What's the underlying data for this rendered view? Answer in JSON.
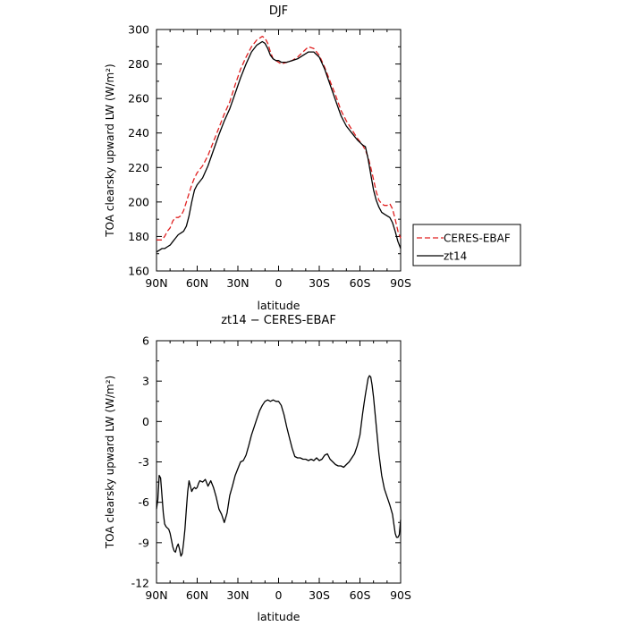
{
  "chart_data": [
    {
      "type": "line",
      "title": "DJF",
      "xlabel": "latitude",
      "ylabel": "TOA clearsky upward LW (W/m²)",
      "xlim": [
        90,
        -90
      ],
      "ylim": [
        160,
        300
      ],
      "yticks": [
        160,
        180,
        200,
        220,
        240,
        260,
        280,
        300
      ],
      "xticks": [
        90,
        60,
        30,
        0,
        -30,
        -60,
        -90
      ],
      "xtick_labels": [
        "90N",
        "60N",
        "30N",
        "0",
        "30S",
        "60S",
        "90S"
      ],
      "grid": false,
      "legend_position": "right",
      "series": [
        {
          "name": "CERES-EBAF",
          "color": "#e02020",
          "dash": "dashed",
          "x": [
            90,
            88,
            86,
            84,
            82,
            80,
            78,
            76,
            74,
            72,
            70,
            68,
            66,
            64,
            62,
            60,
            56,
            52,
            48,
            44,
            40,
            36,
            32,
            28,
            24,
            20,
            16,
            12,
            10,
            8,
            6,
            4,
            2,
            0,
            -2,
            -6,
            -10,
            -14,
            -18,
            -22,
            -26,
            -30,
            -34,
            -38,
            -42,
            -46,
            -50,
            -54,
            -58,
            -62,
            -64,
            -66,
            -68,
            -70,
            -72,
            -74,
            -76,
            -78,
            -80,
            -82,
            -84,
            -86,
            -88,
            -90
          ],
          "y": [
            178,
            178,
            178,
            180,
            183,
            185,
            189,
            191,
            191,
            192,
            195,
            200,
            205,
            210,
            214,
            217,
            221,
            227,
            235,
            243,
            251,
            258,
            268,
            277,
            284,
            290,
            294,
            296,
            295,
            292,
            287,
            283,
            282,
            281,
            280,
            281,
            282,
            284,
            287,
            290,
            289,
            285,
            278,
            270,
            262,
            253,
            247,
            242,
            237,
            233,
            230,
            226,
            220,
            213,
            206,
            201,
            199,
            198,
            198,
            199,
            196,
            190,
            183,
            179
          ]
        },
        {
          "name": "zt14",
          "color": "#000000",
          "dash": "solid",
          "x": [
            90,
            88,
            86,
            84,
            82,
            80,
            78,
            76,
            74,
            72,
            70,
            68,
            66,
            64,
            62,
            60,
            56,
            52,
            48,
            44,
            40,
            36,
            32,
            28,
            24,
            20,
            16,
            12,
            10,
            8,
            6,
            4,
            2,
            0,
            -2,
            -6,
            -10,
            -14,
            -18,
            -22,
            -26,
            -30,
            -34,
            -38,
            -42,
            -46,
            -50,
            -54,
            -58,
            -62,
            -64,
            -66,
            -68,
            -70,
            -72,
            -74,
            -76,
            -78,
            -80,
            -82,
            -84,
            -86,
            -88,
            -90
          ],
          "y": [
            171,
            172,
            173,
            173,
            174,
            175,
            177,
            179,
            181,
            182,
            183,
            186,
            192,
            200,
            207,
            210,
            214,
            221,
            230,
            239,
            247,
            254,
            263,
            272,
            280,
            287,
            291,
            293,
            292,
            289,
            285,
            283,
            282,
            282,
            281,
            281,
            282,
            283,
            285,
            287,
            287,
            284,
            277,
            268,
            259,
            250,
            244,
            240,
            236,
            233,
            232,
            225,
            216,
            207,
            201,
            197,
            194,
            193,
            192,
            191,
            188,
            183,
            177,
            173
          ]
        }
      ]
    },
    {
      "type": "line",
      "title": "zt14 − CERES-EBAF",
      "xlabel": "latitude",
      "ylabel": "TOA clearsky upward LW (W/m²)",
      "xlim": [
        90,
        -90
      ],
      "ylim": [
        -12,
        6
      ],
      "yticks": [
        -12,
        -9,
        -6,
        -3,
        0,
        3,
        6
      ],
      "xticks": [
        90,
        60,
        30,
        0,
        -30,
        -60,
        -90
      ],
      "xtick_labels": [
        "90N",
        "60N",
        "30N",
        "0",
        "30S",
        "60S",
        "90S"
      ],
      "grid": false,
      "series": [
        {
          "color": "#000000",
          "dash": "solid",
          "x": [
            90,
            89,
            88,
            87,
            86,
            85,
            84,
            83,
            82,
            81,
            80,
            79,
            78,
            77,
            76,
            75,
            74,
            73,
            72,
            71,
            70,
            69,
            68,
            67,
            66,
            65,
            64,
            63,
            62,
            61,
            60,
            59,
            58,
            56,
            54,
            52,
            50,
            48,
            46,
            44,
            42,
            40,
            38,
            36,
            34,
            32,
            30,
            28,
            26,
            24,
            22,
            20,
            18,
            16,
            14,
            12,
            10,
            8,
            6,
            4,
            2,
            0,
            -2,
            -4,
            -6,
            -8,
            -10,
            -12,
            -14,
            -16,
            -18,
            -20,
            -22,
            -24,
            -26,
            -28,
            -30,
            -32,
            -34,
            -36,
            -38,
            -40,
            -42,
            -44,
            -46,
            -48,
            -50,
            -52,
            -54,
            -56,
            -58,
            -60,
            -61,
            -62,
            -63,
            -64,
            -65,
            -66,
            -67,
            -68,
            -69,
            -70,
            -72,
            -74,
            -76,
            -78,
            -80,
            -82,
            -84,
            -85,
            -86,
            -87,
            -88,
            -89,
            -90
          ],
          "y": [
            -6.5,
            -5.8,
            -4.0,
            -4.2,
            -5.5,
            -6.8,
            -7.6,
            -7.8,
            -7.9,
            -8.0,
            -8.3,
            -8.8,
            -9.3,
            -9.6,
            -9.7,
            -9.3,
            -9.1,
            -9.5,
            -10.0,
            -9.8,
            -9.0,
            -8.0,
            -6.5,
            -5.2,
            -4.4,
            -4.8,
            -5.2,
            -5.0,
            -4.9,
            -5.0,
            -4.9,
            -4.6,
            -4.4,
            -4.5,
            -4.3,
            -4.8,
            -4.4,
            -4.9,
            -5.6,
            -6.5,
            -6.9,
            -7.5,
            -6.8,
            -5.5,
            -4.8,
            -4.0,
            -3.5,
            -3.0,
            -2.9,
            -2.5,
            -1.8,
            -1.0,
            -0.4,
            0.2,
            0.8,
            1.2,
            1.5,
            1.6,
            1.5,
            1.6,
            1.5,
            1.5,
            1.2,
            0.5,
            -0.4,
            -1.2,
            -2.0,
            -2.6,
            -2.7,
            -2.7,
            -2.8,
            -2.8,
            -2.9,
            -2.8,
            -2.9,
            -2.7,
            -2.9,
            -2.8,
            -2.5,
            -2.4,
            -2.8,
            -3.0,
            -3.2,
            -3.3,
            -3.3,
            -3.4,
            -3.2,
            -3.0,
            -2.7,
            -2.4,
            -1.8,
            -1.0,
            -0.2,
            0.6,
            1.3,
            2.0,
            2.6,
            3.2,
            3.4,
            3.3,
            2.7,
            1.8,
            -0.3,
            -2.4,
            -4.0,
            -5.0,
            -5.6,
            -6.2,
            -6.9,
            -7.6,
            -8.3,
            -8.6,
            -8.6,
            -8.4,
            -7.3
          ]
        }
      ]
    }
  ]
}
